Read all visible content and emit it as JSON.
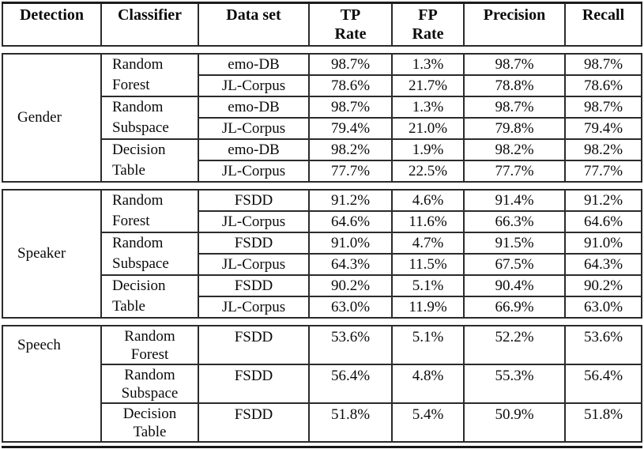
{
  "colors": {
    "border": "#2b2b2b",
    "text": "#0a0a0a",
    "background": "#ffffff"
  },
  "header": {
    "cells": [
      {
        "label": "Detection",
        "label2": ""
      },
      {
        "label": "Classifier",
        "label2": ""
      },
      {
        "label": "Data set",
        "label2": ""
      },
      {
        "label": "TP",
        "label2": "Rate"
      },
      {
        "label": "FP",
        "label2": "Rate"
      },
      {
        "label": "Precision",
        "label2": ""
      },
      {
        "label": "Recall",
        "label2": ""
      }
    ]
  },
  "sections": [
    {
      "detection": "Gender",
      "groups": [
        {
          "classifier_line1": "Random",
          "classifier_line2": "Forest",
          "rows": [
            {
              "dataset": "emo-DB",
              "tp": "98.7%",
              "fp": "1.3%",
              "precision": "98.7%",
              "recall": "98.7%"
            },
            {
              "dataset": "JL-Corpus",
              "tp": "78.6%",
              "fp": "21.7%",
              "precision": "78.8%",
              "recall": "78.6%"
            }
          ]
        },
        {
          "classifier_line1": "Random",
          "classifier_line2": "Subspace",
          "rows": [
            {
              "dataset": "emo-DB",
              "tp": "98.7%",
              "fp": "1.3%",
              "precision": "98.7%",
              "recall": "98.7%"
            },
            {
              "dataset": "JL-Corpus",
              "tp": "79.4%",
              "fp": "21.0%",
              "precision": "79.8%",
              "recall": "79.4%"
            }
          ]
        },
        {
          "classifier_line1": "Decision",
          "classifier_line2": "Table",
          "rows": [
            {
              "dataset": "emo-DB",
              "tp": "98.2%",
              "fp": "1.9%",
              "precision": "98.2%",
              "recall": "98.2%"
            },
            {
              "dataset": "JL-Corpus",
              "tp": "77.7%",
              "fp": "22.5%",
              "precision": "77.7%",
              "recall": "77.7%"
            }
          ]
        }
      ]
    },
    {
      "detection": "Speaker",
      "groups": [
        {
          "classifier_line1": "Random",
          "classifier_line2": "Forest",
          "rows": [
            {
              "dataset": "FSDD",
              "tp": "91.2%",
              "fp": "4.6%",
              "precision": "91.4%",
              "recall": "91.2%"
            },
            {
              "dataset": "JL-Corpus",
              "tp": "64.6%",
              "fp": "11.6%",
              "precision": "66.3%",
              "recall": "64.6%"
            }
          ]
        },
        {
          "classifier_line1": "Random",
          "classifier_line2": "Subspace",
          "rows": [
            {
              "dataset": "FSDD",
              "tp": "91.0%",
              "fp": "4.7%",
              "precision": "91.5%",
              "recall": "91.0%"
            },
            {
              "dataset": "JL-Corpus",
              "tp": "64.3%",
              "fp": "11.5%",
              "precision": "67.5%",
              "recall": "64.3%"
            }
          ]
        },
        {
          "classifier_line1": "Decision",
          "classifier_line2": "Table",
          "rows": [
            {
              "dataset": "FSDD",
              "tp": "90.2%",
              "fp": "5.1%",
              "precision": "90.4%",
              "recall": "90.2%"
            },
            {
              "dataset": "JL-Corpus",
              "tp": "63.0%",
              "fp": "11.9%",
              "precision": "66.9%",
              "recall": "63.0%"
            }
          ]
        }
      ]
    },
    {
      "detection": "Speech",
      "groups": [
        {
          "classifier_line1": "Random",
          "classifier_line2": "Forest",
          "rows": [
            {
              "dataset": "FSDD",
              "tp": "53.6%",
              "fp": "5.1%",
              "precision": "52.2%",
              "recall": "53.6%"
            }
          ]
        },
        {
          "classifier_line1": "Random",
          "classifier_line2": "Subspace",
          "rows": [
            {
              "dataset": "FSDD",
              "tp": "56.4%",
              "fp": "4.8%",
              "precision": "55.3%",
              "recall": "56.4%"
            }
          ]
        },
        {
          "classifier_line1": "Decision",
          "classifier_line2": "Table",
          "rows": [
            {
              "dataset": "FSDD",
              "tp": "51.8%",
              "fp": "5.4%",
              "precision": "50.9%",
              "recall": "51.8%"
            }
          ]
        }
      ]
    }
  ]
}
